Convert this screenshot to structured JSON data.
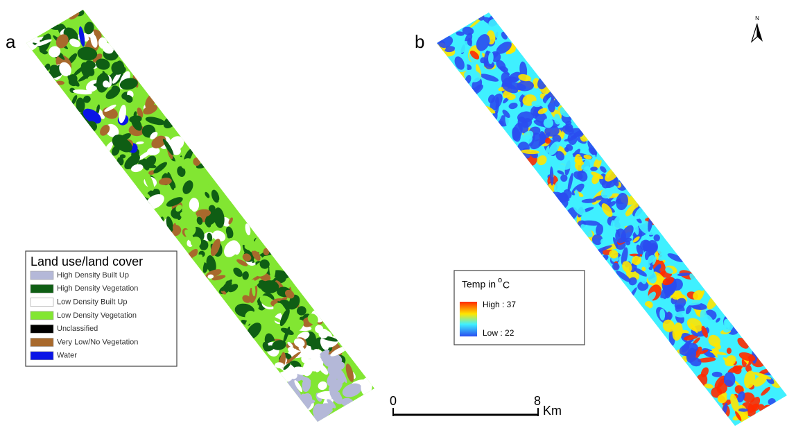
{
  "panels": [
    {
      "label": "a",
      "legend": {
        "title": "Land use/land cover",
        "items": [
          {
            "name": "High Density Built Up",
            "color": "#b4b8d8"
          },
          {
            "name": "High Density Vegetation",
            "color": "#0f5e14"
          },
          {
            "name": "Low Density Built Up",
            "color": "#ffffff"
          },
          {
            "name": "Low Density Vegetation",
            "color": "#82e632"
          },
          {
            "name": "Unclassified",
            "color": "#000000"
          },
          {
            "name": "Very Low/No Vegetation",
            "color": "#a8692c"
          },
          {
            "name": "Water",
            "color": "#0a14e6"
          }
        ]
      }
    },
    {
      "label": "b",
      "legend": {
        "title": "Temp in",
        "superscript": "o",
        "unit": "C",
        "high": "High : 37",
        "low": "Low : 22",
        "colors": [
          "#ff2a00",
          "#ffe600",
          "#3ff0ff",
          "#2a4cf0"
        ]
      }
    }
  ],
  "scale_bar": {
    "start": "0",
    "end": "8",
    "unit": "Km"
  },
  "north_arrow": "N"
}
